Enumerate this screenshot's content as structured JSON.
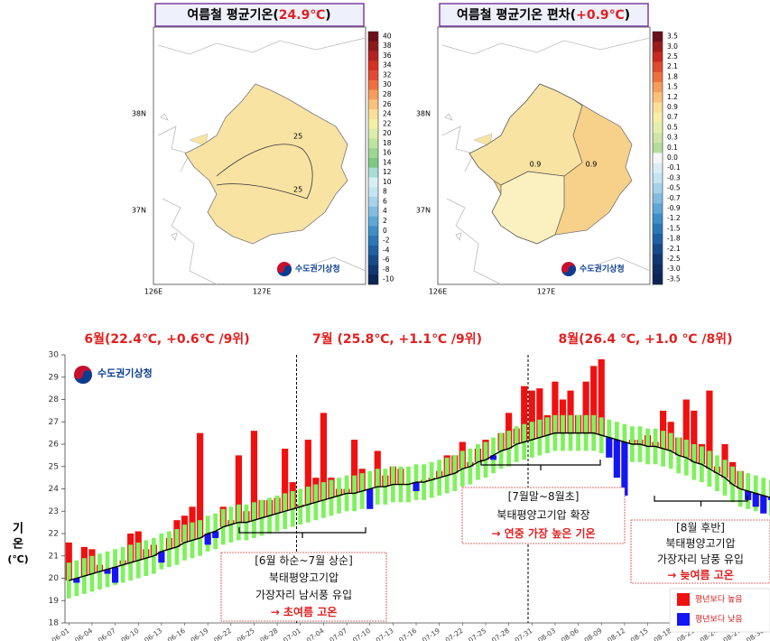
{
  "maps": [
    {
      "title": [
        "여름철 평균기온(",
        "24.9℃",
        ")"
      ],
      "lat_labels": [
        "38N",
        "37N"
      ],
      "lon_labels": [
        "126E",
        "127E"
      ],
      "contour_labels": [
        "25",
        "25"
      ],
      "logo": "수도권기상청",
      "colorbar": {
        "labels": [
          "40",
          "38",
          "36",
          "34",
          "32",
          "30",
          "28",
          "26",
          "24",
          "22",
          "20",
          "18",
          "16",
          "14",
          "12",
          "10",
          "8",
          "6",
          "4",
          "2",
          "0",
          "-2",
          "-4",
          "-6",
          "-8",
          "-10"
        ],
        "colors": [
          "#6b0f1a",
          "#8b1a1a",
          "#b22222",
          "#d7301f",
          "#e34a33",
          "#f07040",
          "#f59d5c",
          "#f8c27a",
          "#fbe09a",
          "#f6efa6",
          "#dcecaa",
          "#bfe3a0",
          "#9ed693",
          "#7ec883",
          "#a9dcd5",
          "#d8eef4",
          "#c4e4f1",
          "#a6d2ea",
          "#82bde1",
          "#5ea7d6",
          "#3e8fc8",
          "#2b77b8",
          "#1f60a4",
          "#184a8a",
          "#123770",
          "#0b2555"
        ]
      }
    },
    {
      "title": [
        "여름철 평균기온 편차(",
        "+0.9℃",
        ")"
      ],
      "lat_labels": [
        "38N",
        "37N"
      ],
      "lon_labels": [
        "126E",
        "127E"
      ],
      "contour_labels": [
        "0.9",
        "0.9"
      ],
      "logo": "수도권기상청",
      "colorbar": {
        "labels": [
          "3.5",
          "3.0",
          "2.5",
          "2.1",
          "1.8",
          "1.5",
          "1.2",
          "0.9",
          "0.7",
          "0.5",
          "0.3",
          "0.1",
          "0.0",
          "-0.1",
          "-0.3",
          "-0.5",
          "-0.7",
          "-0.9",
          "-1.2",
          "-1.5",
          "-1.8",
          "-2.1",
          "-2.5",
          "-3.0",
          "-3.5"
        ],
        "colors": [
          "#6b0f1a",
          "#9b1b1b",
          "#c8281e",
          "#e04a30",
          "#ee7040",
          "#f59d5c",
          "#f8c27a",
          "#fbe09a",
          "#f6efa6",
          "#e6eeae",
          "#cfe6a6",
          "#b5dc9c",
          "#f7f7f7",
          "#d8eef4",
          "#c4e4f1",
          "#a6d2ea",
          "#82bde1",
          "#5ea7d6",
          "#3e8fc8",
          "#2b77b8",
          "#1f60a4",
          "#184a8a",
          "#123770",
          "#0e2c60",
          "#0b2555"
        ]
      }
    }
  ],
  "chart_data": {
    "type": "bar",
    "month_headers": [
      "6월(22.4℃, +0.6℃ /9위)",
      "7월 (25.8℃, +1.1℃ /9위)",
      "8월(26.4 ℃, +1.0 ℃ /8위)"
    ],
    "y_label": [
      "기",
      "온",
      "(℃)"
    ],
    "logo": "수도권기상청",
    "categories": [
      "06-01",
      null,
      null,
      "06-04",
      null,
      null,
      "06-07",
      null,
      null,
      "06-10",
      null,
      null,
      "06-13",
      null,
      null,
      "06-16",
      null,
      null,
      "06-19",
      null,
      null,
      "06-22",
      null,
      null,
      "06-25",
      null,
      null,
      "06-28",
      null,
      null,
      "07-01",
      null,
      null,
      "07-04",
      null,
      null,
      "07-07",
      null,
      null,
      "07-10",
      null,
      null,
      "07-13",
      null,
      null,
      "07-16",
      null,
      null,
      "07-19",
      null,
      null,
      "07-22",
      null,
      null,
      "07-25",
      null,
      null,
      "07-28",
      null,
      null,
      "07-31",
      null,
      null,
      "08-03",
      null,
      null,
      "08-06",
      null,
      null,
      "08-09",
      null,
      null,
      "08-12",
      null,
      null,
      "08-15",
      null,
      null,
      "08-18",
      null,
      null,
      "08-21",
      null,
      null,
      "08-24",
      null,
      null,
      "08-27",
      null,
      null,
      "08-30",
      null
    ],
    "observed": [
      21.6,
      19.8,
      21.4,
      21.3,
      20.6,
      20.2,
      19.8,
      20.8,
      22.0,
      22.1,
      21.3,
      21.5,
      20.7,
      21.8,
      22.6,
      22.8,
      23.2,
      26.5,
      21.5,
      21.8,
      23.2,
      22.6,
      25.5,
      23.0,
      26.6,
      23.5,
      23.5,
      23.6,
      25.8,
      24.3,
      23.3,
      26.2,
      24.5,
      27.4,
      24.5,
      24.0,
      24.0,
      26.2,
      24.9,
      23.1,
      25.7,
      24.6,
      25.0,
      24.9,
      24.2,
      23.9,
      24.4,
      24.5,
      24.8,
      25.5,
      25.5,
      26.1,
      25.2,
      25.8,
      26.2,
      25.3,
      26.5,
      27.4,
      26.7,
      28.6,
      28.4,
      28.5,
      27.3,
      28.8,
      28.0,
      28.4,
      27.3,
      28.8,
      29.5,
      29.8,
      25.4,
      24.5,
      23.7,
      26.2,
      26.2,
      26.4,
      26.1,
      27.5,
      27.0,
      26.3,
      28.0,
      27.5,
      26.0,
      28.4,
      25.0,
      26.0,
      25.2,
      24.8,
      23.5,
      23.2,
      22.9,
      23.5
    ],
    "normal": [
      19.9,
      20.0,
      20.1,
      20.2,
      20.3,
      20.4,
      20.5,
      20.6,
      20.7,
      20.8,
      20.9,
      21.0,
      21.2,
      21.3,
      21.4,
      21.6,
      21.7,
      21.8,
      22.0,
      22.1,
      22.3,
      22.4,
      22.5,
      22.5,
      22.6,
      22.7,
      22.8,
      22.9,
      23.0,
      23.1,
      23.2,
      23.3,
      23.4,
      23.5,
      23.6,
      23.7,
      23.8,
      23.8,
      23.9,
      24.0,
      24.1,
      24.1,
      24.2,
      24.2,
      24.2,
      24.3,
      24.3,
      24.4,
      24.5,
      24.6,
      24.7,
      24.9,
      25.0,
      25.2,
      25.3,
      25.5,
      25.7,
      25.8,
      26.0,
      26.1,
      26.2,
      26.3,
      26.4,
      26.5,
      26.5,
      26.5,
      26.5,
      26.5,
      26.5,
      26.4,
      26.3,
      26.2,
      26.1,
      26.0,
      26.0,
      25.9,
      25.9,
      25.8,
      25.7,
      25.5,
      25.4,
      25.2,
      25.1,
      24.9,
      24.7,
      24.5,
      24.2,
      24.0,
      23.9,
      23.8,
      23.7,
      23.6
    ],
    "range_low": [
      19.1,
      19.2,
      19.3,
      19.4,
      19.5,
      19.6,
      19.7,
      19.8,
      19.9,
      20.0,
      20.1,
      20.2,
      20.4,
      20.5,
      20.6,
      20.8,
      20.9,
      21.0,
      21.2,
      21.3,
      21.5,
      21.6,
      21.7,
      21.7,
      21.8,
      21.9,
      22.0,
      22.1,
      22.2,
      22.3,
      22.4,
      22.5,
      22.6,
      22.7,
      22.8,
      22.9,
      23.0,
      23.0,
      23.1,
      23.2,
      23.3,
      23.3,
      23.4,
      23.4,
      23.4,
      23.5,
      23.5,
      23.6,
      23.7,
      23.8,
      23.9,
      24.1,
      24.2,
      24.4,
      24.5,
      24.7,
      24.9,
      25.0,
      25.2,
      25.3,
      25.4,
      25.5,
      25.6,
      25.7,
      25.7,
      25.7,
      25.7,
      25.7,
      25.7,
      25.6,
      25.5,
      25.4,
      25.3,
      25.2,
      25.2,
      25.1,
      25.1,
      25.0,
      24.9,
      24.7,
      24.6,
      24.4,
      24.3,
      24.1,
      23.9,
      23.7,
      23.4,
      23.2,
      23.1,
      23.0,
      22.9,
      22.8
    ],
    "range_high": [
      20.7,
      20.8,
      20.9,
      21.0,
      21.1,
      21.2,
      21.3,
      21.4,
      21.5,
      21.6,
      21.7,
      21.8,
      22.0,
      22.1,
      22.2,
      22.4,
      22.5,
      22.6,
      22.8,
      22.9,
      23.1,
      23.2,
      23.3,
      23.3,
      23.4,
      23.5,
      23.6,
      23.7,
      23.8,
      23.9,
      24.0,
      24.1,
      24.2,
      24.3,
      24.4,
      24.5,
      24.6,
      24.6,
      24.7,
      24.8,
      24.9,
      24.9,
      25.0,
      25.0,
      25.0,
      25.1,
      25.1,
      25.2,
      25.3,
      25.4,
      25.5,
      25.7,
      25.8,
      26.0,
      26.1,
      26.3,
      26.5,
      26.6,
      26.8,
      26.9,
      27.0,
      27.1,
      27.2,
      27.3,
      27.3,
      27.3,
      27.3,
      27.3,
      27.3,
      27.2,
      27.1,
      27.0,
      26.9,
      26.8,
      26.8,
      26.7,
      26.7,
      26.6,
      26.5,
      26.3,
      26.2,
      26.0,
      25.9,
      25.7,
      25.5,
      25.3,
      25.0,
      24.8,
      24.7,
      24.6,
      24.5,
      24.4
    ],
    "range_color": "#7ef25c",
    "normal_color": "#000000",
    "legend": [
      {
        "name": "평년보다 높음",
        "color": "#f01010"
      },
      {
        "name": "평년보다 낮음",
        "color": "#1515f5"
      }
    ],
    "ylim": [
      18,
      30
    ],
    "yticks": [
      18,
      19,
      20,
      21,
      22,
      23,
      24,
      25,
      26,
      27,
      28,
      29,
      30
    ],
    "dividers": [
      "07-01",
      "07-31"
    ],
    "annotations": [
      {
        "lines": [
          "[6월 하순~7월 상순]",
          "북태평양고기압",
          "가장자리 남서풍 유입"
        ],
        "emphasis": "→ 초여름 고온"
      },
      {
        "lines": [
          "[7월말~8월초]",
          "북태평양고기압 확장"
        ],
        "emphasis": "→ 연중 가장 높은 기온"
      },
      {
        "lines": [
          "[8월 후반]",
          "북태평양고기압",
          "가장자리 남풍 유입"
        ],
        "emphasis": "→ 늦여름 고온"
      }
    ]
  }
}
